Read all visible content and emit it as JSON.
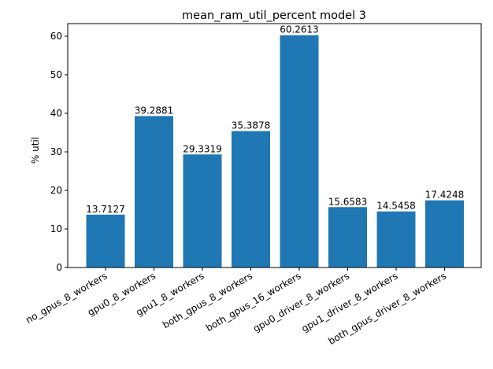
{
  "chart_data": {
    "type": "bar",
    "title": "mean_ram_util_percent model 3",
    "xlabel": "",
    "ylabel": "% util",
    "ylim": [
      0,
      63.27
    ],
    "yticks": [
      0,
      10,
      20,
      30,
      40,
      50,
      60
    ],
    "categories": [
      "no_gpus_8_workers",
      "gpu0_8_workers",
      "gpu1_8_workers",
      "both_gpus_8_workers",
      "both_gpus_16_workers",
      "gpu0_driver_8_workers",
      "gpu1_driver_8_workers",
      "both_gpus_driver_8_workers"
    ],
    "values": [
      13.7127,
      39.2881,
      29.3319,
      35.3878,
      60.2613,
      15.6583,
      14.5458,
      17.4248
    ],
    "data_labels": [
      "13.7127",
      "39.2881",
      "29.3319",
      "35.3878",
      "60.2613",
      "15.6583",
      "14.5458",
      "17.4248"
    ],
    "bar_color": "#1f77b4",
    "grid": false,
    "legend": "none"
  }
}
